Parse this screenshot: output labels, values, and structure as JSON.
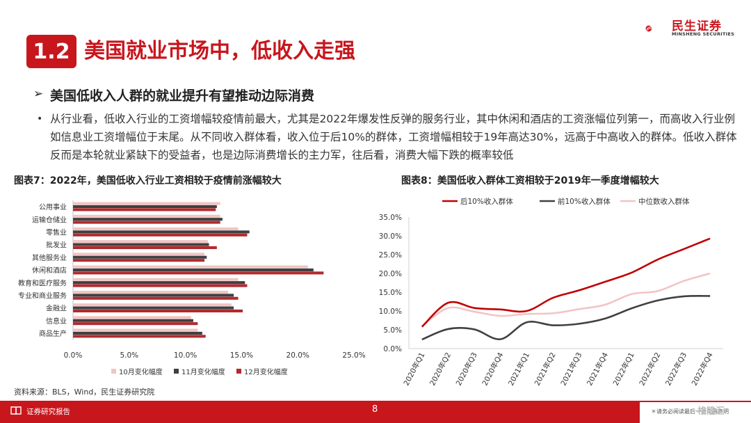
{
  "header": {
    "section_number": "1.2",
    "section_title": "美国就业市场中，低收入走强",
    "logo_name": "民生证券",
    "logo_sub": "MINSHENG SECURITIES"
  },
  "subheading": "美国低收入人群的就业提升有望推动边际消费",
  "paragraph": "从行业看，低收入行业的工资增幅较疫情前最大，尤其是2022年爆发性反弹的服务行业，其中休闲和酒店的工资涨幅位列第一，而高收入行业例如信息业工资增幅位于末尾。从不同收入群体看，收入位于后10%的群体，工资增幅相较于19年高达30%，远高于中高收入的群体。低收入群体反而是本轮就业紧缺下的受益者，也是边际消费增长的主力军，往后看，消费大幅下跌的概率较低",
  "source": "资料来源：BLS，Wind，民生证券研究院",
  "footer": {
    "label": "证券研究报告",
    "page": "8",
    "disclaimer": "＊请务必阅读最后一页免责声明",
    "watermark": "格隆汇"
  },
  "colors": {
    "brand_red": "#c8161d",
    "oct": "#f2c4c4",
    "nov": "#404040",
    "dec": "#b22a2e",
    "line_bottom10": "#c00000",
    "line_top10": "#404040",
    "line_median": "#f2c4c4"
  },
  "chart_data": [
    {
      "type": "bar",
      "title": "图表7：2022年，美国低收入行业工资相较于疫情前涨幅较大",
      "orientation": "horizontal",
      "categories": [
        "公用事业",
        "运输仓储业",
        "零售业",
        "批发业",
        "其他服务业",
        "休闲和酒店",
        "教育和医疗服务",
        "专业和商业服务",
        "金融业",
        "信息业",
        "商品生产"
      ],
      "series": [
        {
          "name": "10月变化幅度",
          "values": [
            0.131,
            0.131,
            0.147,
            0.12,
            0.117,
            0.209,
            0.147,
            0.138,
            0.141,
            0.105,
            0.111
          ]
        },
        {
          "name": "11月变化幅度",
          "values": [
            0.128,
            0.133,
            0.157,
            0.121,
            0.119,
            0.214,
            0.153,
            0.143,
            0.143,
            0.107,
            0.115
          ]
        },
        {
          "name": "12月变化幅度",
          "values": [
            0.127,
            0.131,
            0.155,
            0.128,
            0.117,
            0.223,
            0.155,
            0.147,
            0.151,
            0.111,
            0.118
          ]
        }
      ],
      "xlim": [
        0,
        0.25
      ],
      "xticks": [
        "0.0%",
        "5.0%",
        "10.0%",
        "15.0%",
        "20.0%",
        "25.0%"
      ],
      "legend": "bottom"
    },
    {
      "type": "line",
      "title": "图表8：美国低收入群体工资相较于2019年一季度增幅较大",
      "x": [
        "2020年Q1",
        "2020年Q2",
        "2020年Q3",
        "2020年Q4",
        "2021年Q1",
        "2021年Q2",
        "2021年Q3",
        "2021年Q4",
        "2022年Q1",
        "2022年Q2",
        "2022年Q3",
        "2022年Q4"
      ],
      "series": [
        {
          "name": "后10%收入群体",
          "values": [
            0.058,
            0.122,
            0.108,
            0.104,
            0.1,
            0.135,
            0.155,
            0.178,
            0.202,
            0.237,
            0.265,
            0.293
          ]
        },
        {
          "name": "前10%收入群体",
          "values": [
            0.024,
            0.052,
            0.051,
            0.025,
            0.07,
            0.062,
            0.066,
            0.08,
            0.107,
            0.128,
            0.139,
            0.14
          ]
        },
        {
          "name": "中位数收入群体",
          "values": [
            0.06,
            0.108,
            0.098,
            0.087,
            0.092,
            0.094,
            0.105,
            0.117,
            0.145,
            0.153,
            0.18,
            0.2
          ]
        }
      ],
      "ylim": [
        0,
        0.35
      ],
      "yticks": [
        "0.0%",
        "5.0%",
        "10.0%",
        "15.0%",
        "20.0%",
        "25.0%",
        "30.0%",
        "35.0%"
      ],
      "legend": "top"
    }
  ]
}
